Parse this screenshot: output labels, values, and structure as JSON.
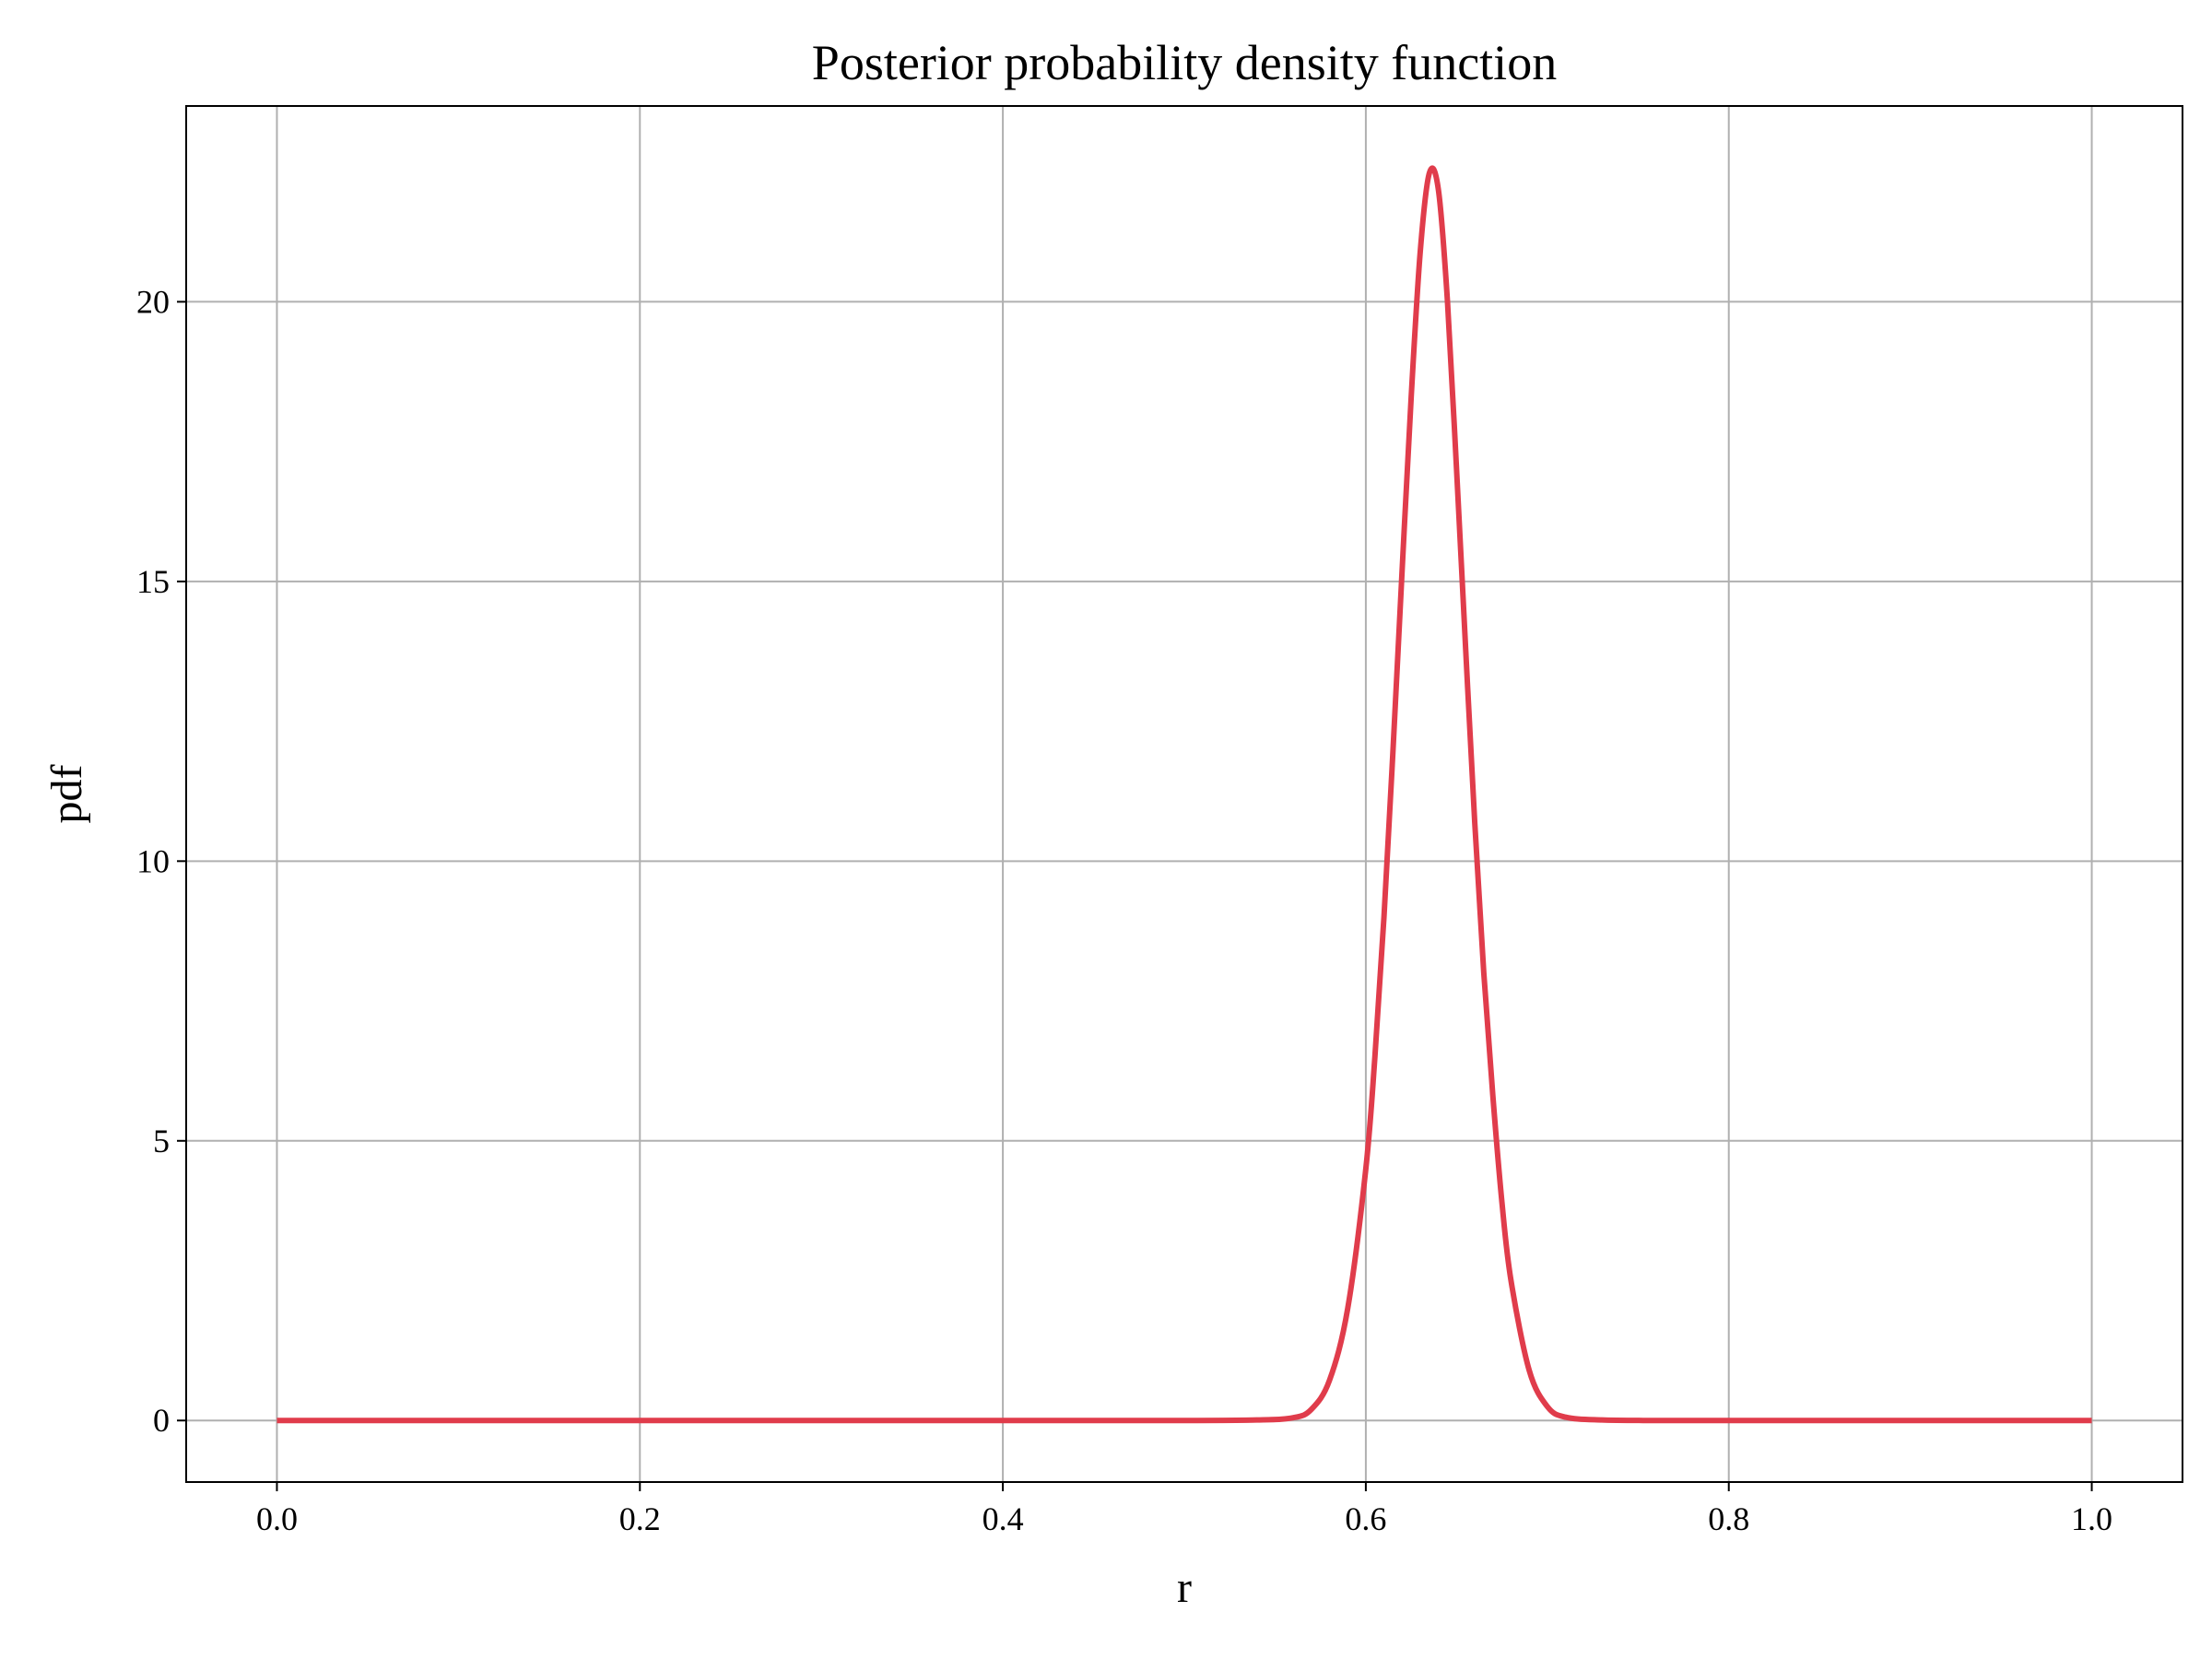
{
  "chart_data": {
    "type": "line",
    "title": "Posterior probability density function",
    "xlabel": "r",
    "ylabel": "pdf",
    "xlim": [
      -0.05,
      1.05
    ],
    "ylim": [
      -1.1,
      23.5
    ],
    "xticks": [
      0.0,
      0.2,
      0.4,
      0.6,
      0.8,
      1.0
    ],
    "xtick_labels": [
      "0.0",
      "0.2",
      "0.4",
      "0.6",
      "0.8",
      "1.0"
    ],
    "yticks": [
      0,
      5,
      10,
      15,
      20
    ],
    "ytick_labels": [
      "0",
      "5",
      "10",
      "15",
      "20"
    ],
    "grid": true,
    "legend": "none",
    "series": [
      {
        "color": "#e03c4b",
        "x": [
          0.0,
          0.1,
          0.2,
          0.3,
          0.4,
          0.5,
          0.54,
          0.56,
          0.57,
          0.58,
          0.59,
          0.6,
          0.605,
          0.61,
          0.615,
          0.62,
          0.625,
          0.63,
          0.635,
          0.64,
          0.645,
          0.65,
          0.655,
          0.66,
          0.665,
          0.67,
          0.675,
          0.68,
          0.69,
          0.7,
          0.71,
          0.73,
          0.76,
          0.8,
          0.9,
          1.0
        ],
        "y": [
          0,
          0,
          0,
          0,
          0,
          0,
          0.01,
          0.05,
          0.2,
          0.72,
          2.0,
          4.5,
          6.5,
          9.0,
          12.0,
          15.2,
          18.3,
          20.9,
          22.3,
          22.0,
          20.0,
          17.0,
          13.8,
          10.7,
          8.0,
          5.8,
          3.9,
          2.5,
          0.9,
          0.25,
          0.06,
          0.01,
          0,
          0,
          0,
          0
        ]
      }
    ]
  }
}
